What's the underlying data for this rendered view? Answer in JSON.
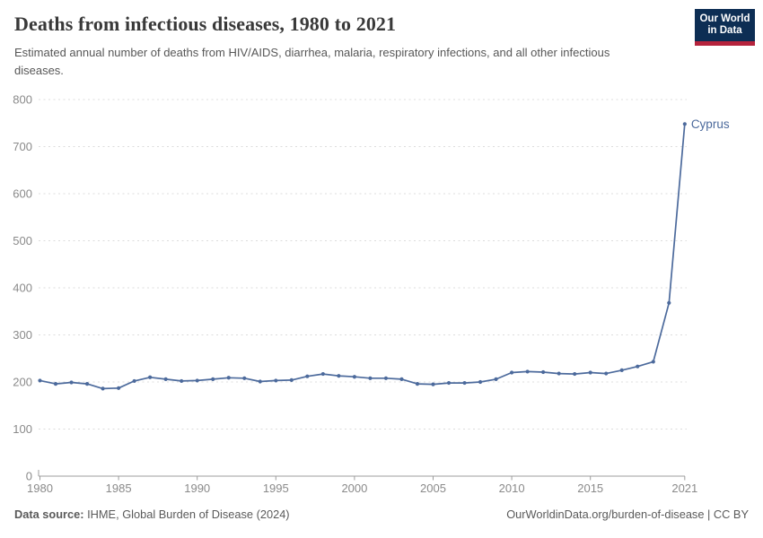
{
  "header": {
    "title": "Deaths from infectious diseases, 1980 to 2021",
    "subtitle": "Estimated annual number of deaths from HIV/AIDS, diarrhea, malaria, respiratory infections, and all other infectious diseases.",
    "logo": {
      "line1": "Our World",
      "line2": "in Data",
      "bg_color": "#0d2e54",
      "accent_color": "#b5233c"
    }
  },
  "chart_data": {
    "type": "line",
    "title": "Deaths from infectious diseases, 1980 to 2021",
    "x": [
      1980,
      1981,
      1982,
      1983,
      1984,
      1985,
      1986,
      1987,
      1988,
      1989,
      1990,
      1991,
      1992,
      1993,
      1994,
      1995,
      1996,
      1997,
      1998,
      1999,
      2000,
      2001,
      2002,
      2003,
      2004,
      2005,
      2006,
      2007,
      2008,
      2009,
      2010,
      2011,
      2012,
      2013,
      2014,
      2015,
      2016,
      2017,
      2018,
      2019,
      2020,
      2021
    ],
    "series": [
      {
        "name": "Cyprus",
        "color": "#4C6A9C",
        "values": [
          203,
          196,
          199,
          196,
          186,
          187,
          202,
          210,
          206,
          202,
          203,
          206,
          209,
          208,
          201,
          203,
          204,
          212,
          217,
          213,
          211,
          208,
          208,
          206,
          196,
          195,
          198,
          198,
          200,
          206,
          220,
          222,
          221,
          218,
          217,
          220,
          218,
          225,
          233,
          243,
          368,
          748
        ]
      }
    ],
    "end_label": "Cyprus",
    "xlabel": "",
    "ylabel": "",
    "ylim": [
      0,
      800
    ],
    "yticks": [
      0,
      100,
      200,
      300,
      400,
      500,
      600,
      700,
      800
    ],
    "xticks": [
      1980,
      1985,
      1990,
      1995,
      2000,
      2005,
      2010,
      2015,
      2021
    ],
    "grid": "horizontal-dashed",
    "legend": "end-of-line-label",
    "grid_color": "#dcdcdc",
    "axis_color": "#9c9c9c",
    "tick_label_color": "#8a8a8a"
  },
  "footer": {
    "source_label": "Data source:",
    "source_value": "IHME, Global Burden of Disease (2024)",
    "credit": "OurWorldinData.org/burden-of-disease | CC BY"
  }
}
